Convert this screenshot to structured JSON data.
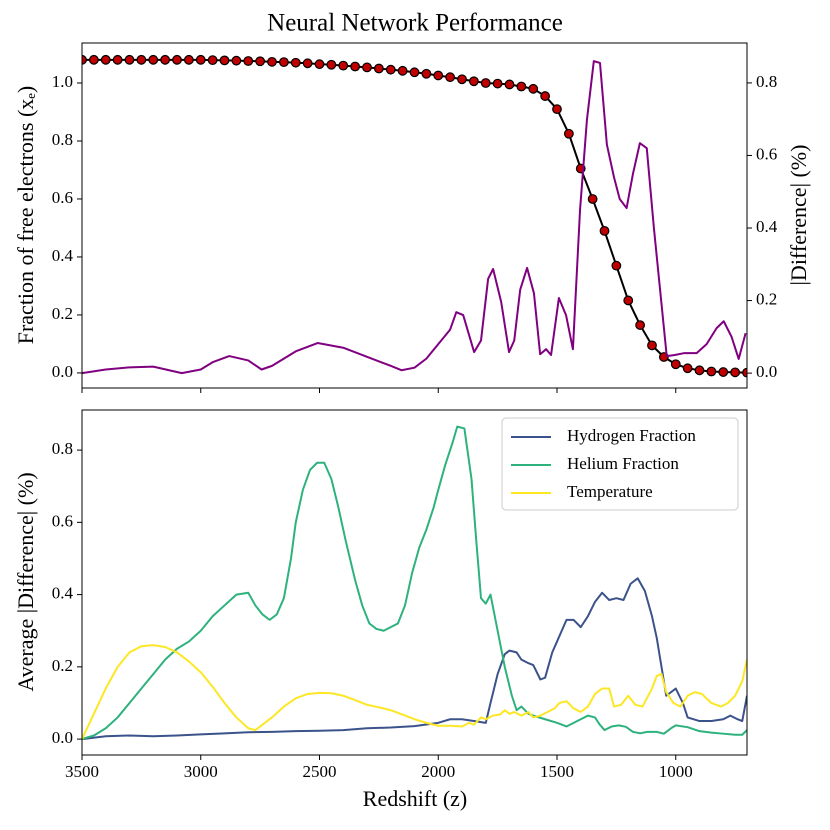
{
  "chart_data": [
    {
      "type": "line",
      "title": "Neural Network Performance",
      "ylabel": "Fraction of free electrons (xₑ)",
      "y2label": "|Difference| (%)",
      "xlim": [
        3500,
        700
      ],
      "xticks": [
        3500,
        3000,
        2500,
        2000,
        1500,
        1000
      ],
      "ylim": [
        -0.052,
        1.138
      ],
      "yticks": [
        {
          "value": 0,
          "label": "0.0"
        },
        {
          "value": 0.2,
          "label": "0.2"
        },
        {
          "value": 0.4,
          "label": "0.4"
        },
        {
          "value": 0.6,
          "label": "0.6"
        },
        {
          "value": 0.8,
          "label": "0.8"
        },
        {
          "value": 1.0,
          "label": "1.0"
        }
      ],
      "y2lim": [
        -0.041,
        0.91
      ],
      "y2ticks": [
        {
          "value": 0,
          "label": "0.0"
        },
        {
          "value": 0.2,
          "label": "0.2"
        },
        {
          "value": 0.4,
          "label": "0.4"
        },
        {
          "value": 0.6,
          "label": "0.6"
        },
        {
          "value": 0.8,
          "label": "0.8"
        }
      ],
      "series": [
        {
          "color": "#000000",
          "marker_color": "#c00000",
          "x": [
            3500,
            3450,
            3400,
            3350,
            3300,
            3250,
            3200,
            3150,
            3100,
            3050,
            3000,
            2950,
            2900,
            2850,
            2800,
            2750,
            2700,
            2650,
            2600,
            2550,
            2500,
            2450,
            2400,
            2350,
            2300,
            2250,
            2200,
            2150,
            2100,
            2050,
            2000,
            1950,
            1900,
            1850,
            1800,
            1750,
            1700,
            1650,
            1600,
            1550,
            1500,
            1450,
            1400,
            1350,
            1300,
            1250,
            1200,
            1150,
            1100,
            1050,
            1000,
            950,
            900,
            850,
            800,
            750,
            700
          ],
          "values": [
            1.08,
            1.08,
            1.08,
            1.08,
            1.08,
            1.08,
            1.08,
            1.08,
            1.08,
            1.08,
            1.08,
            1.079,
            1.078,
            1.077,
            1.076,
            1.075,
            1.073,
            1.072,
            1.07,
            1.068,
            1.065,
            1.063,
            1.06,
            1.057,
            1.054,
            1.05,
            1.046,
            1.042,
            1.037,
            1.032,
            1.026,
            1.02,
            1.013,
            1.006,
            1.0,
            0.998,
            0.995,
            0.988,
            0.98,
            0.955,
            0.91,
            0.825,
            0.705,
            0.6,
            0.49,
            0.37,
            0.25,
            0.165,
            0.095,
            0.055,
            0.03,
            0.016,
            0.009,
            0.005,
            0.003,
            0.002,
            0.001
          ]
        },
        {
          "color": "#800080",
          "axis": "y2",
          "x": [
            3500,
            3400,
            3300,
            3200,
            3080,
            3000,
            2950,
            2880,
            2800,
            2744,
            2700,
            2600,
            2508,
            2400,
            2300,
            2200,
            2155,
            2100,
            2050,
            2000,
            1950,
            1924,
            1895,
            1849,
            1820,
            1790,
            1769,
            1735,
            1702,
            1680,
            1655,
            1626,
            1597,
            1571,
            1546,
            1525,
            1492,
            1462,
            1433,
            1403,
            1374,
            1345,
            1319,
            1290,
            1260,
            1236,
            1207,
            1180,
            1151,
            1122,
            1092,
            1038,
            1004,
            966,
            912,
            870,
            828,
            798,
            765,
            735,
            706
          ],
          "values": [
            0,
            0.01,
            0.016,
            0.018,
            0,
            0.01,
            0.03,
            0.047,
            0.035,
            0.01,
            0.02,
            0.06,
            0.083,
            0.07,
            0.045,
            0.02,
            0.008,
            0.015,
            0.04,
            0.08,
            0.12,
            0.168,
            0.16,
            0.058,
            0.09,
            0.26,
            0.287,
            0.196,
            0.058,
            0.09,
            0.23,
            0.29,
            0.22,
            0.052,
            0.066,
            0.05,
            0.207,
            0.16,
            0.066,
            0.45,
            0.698,
            0.86,
            0.855,
            0.63,
            0.54,
            0.48,
            0.455,
            0.55,
            0.634,
            0.62,
            0.4,
            0.047,
            0.05,
            0.055,
            0.055,
            0.08,
            0.124,
            0.143,
            0.1,
            0.039,
            0.11
          ]
        }
      ]
    },
    {
      "type": "line",
      "xlabel": "Redshift (z)",
      "ylabel": "Average |Difference| (%)",
      "legend": "upper right",
      "xlim": [
        3500,
        700
      ],
      "xticks": [
        3500,
        3000,
        2500,
        2000,
        1500,
        1000
      ],
      "ylim": [
        -0.044,
        0.911
      ],
      "yticks": [
        {
          "value": 0,
          "label": "0.0"
        },
        {
          "value": 0.2,
          "label": "0.2"
        },
        {
          "value": 0.4,
          "label": "0.4"
        },
        {
          "value": 0.6,
          "label": "0.6"
        },
        {
          "value": 0.8,
          "label": "0.8"
        }
      ],
      "series": [
        {
          "name": "Hydrogen Fraction",
          "color": "#3b528b",
          "x": [
            3500,
            3400,
            3300,
            3200,
            3100,
            3000,
            2900,
            2800,
            2700,
            2600,
            2500,
            2400,
            2300,
            2200,
            2100,
            2000,
            1950,
            1900,
            1850,
            1800,
            1780,
            1750,
            1720,
            1700,
            1670,
            1650,
            1620,
            1600,
            1570,
            1550,
            1520,
            1500,
            1460,
            1430,
            1400,
            1370,
            1340,
            1310,
            1280,
            1250,
            1220,
            1190,
            1160,
            1130,
            1100,
            1080,
            1060,
            1040,
            1000,
            970,
            950,
            900,
            850,
            800,
            770,
            740,
            720,
            700
          ],
          "values": [
            0,
            0.008,
            0.01,
            0.008,
            0.01,
            0.013,
            0.016,
            0.019,
            0.02,
            0.022,
            0.023,
            0.025,
            0.03,
            0.032,
            0.036,
            0.045,
            0.055,
            0.055,
            0.05,
            0.045,
            0.1,
            0.18,
            0.235,
            0.245,
            0.24,
            0.22,
            0.21,
            0.205,
            0.165,
            0.17,
            0.24,
            0.27,
            0.33,
            0.33,
            0.31,
            0.34,
            0.38,
            0.405,
            0.385,
            0.39,
            0.385,
            0.43,
            0.445,
            0.41,
            0.34,
            0.28,
            0.2,
            0.12,
            0.14,
            0.1,
            0.06,
            0.05,
            0.05,
            0.055,
            0.065,
            0.055,
            0.05,
            0.12
          ]
        },
        {
          "name": "Helium Fraction",
          "color": "#2db27d",
          "x": [
            3500,
            3450,
            3400,
            3350,
            3300,
            3250,
            3200,
            3150,
            3100,
            3050,
            3000,
            2950,
            2900,
            2850,
            2800,
            2770,
            2740,
            2710,
            2680,
            2650,
            2620,
            2600,
            2570,
            2540,
            2510,
            2480,
            2450,
            2420,
            2390,
            2350,
            2320,
            2290,
            2260,
            2230,
            2200,
            2170,
            2140,
            2110,
            2080,
            2050,
            2020,
            2000,
            1970,
            1940,
            1920,
            1890,
            1860,
            1840,
            1820,
            1800,
            1780,
            1750,
            1720,
            1690,
            1670,
            1650,
            1620,
            1600,
            1550,
            1500,
            1460,
            1430,
            1400,
            1370,
            1340,
            1320,
            1300,
            1270,
            1240,
            1210,
            1180,
            1150,
            1120,
            1080,
            1050,
            1020,
            1000,
            950,
            900,
            850,
            800,
            750,
            720,
            700
          ],
          "values": [
            0,
            0.01,
            0.03,
            0.06,
            0.1,
            0.14,
            0.18,
            0.22,
            0.25,
            0.27,
            0.3,
            0.34,
            0.37,
            0.4,
            0.405,
            0.37,
            0.345,
            0.33,
            0.345,
            0.39,
            0.5,
            0.6,
            0.69,
            0.745,
            0.765,
            0.765,
            0.72,
            0.64,
            0.55,
            0.44,
            0.37,
            0.32,
            0.305,
            0.3,
            0.31,
            0.32,
            0.37,
            0.46,
            0.53,
            0.58,
            0.64,
            0.69,
            0.76,
            0.82,
            0.865,
            0.86,
            0.72,
            0.55,
            0.39,
            0.375,
            0.4,
            0.3,
            0.2,
            0.12,
            0.08,
            0.09,
            0.07,
            0.065,
            0.055,
            0.045,
            0.035,
            0.045,
            0.055,
            0.065,
            0.06,
            0.04,
            0.025,
            0.035,
            0.038,
            0.034,
            0.02,
            0.016,
            0.02,
            0.02,
            0.015,
            0.03,
            0.038,
            0.033,
            0.022,
            0.018,
            0.015,
            0.012,
            0.012,
            0.025
          ]
        },
        {
          "name": "Temperature",
          "color": "#fde725",
          "x": [
            3500,
            3450,
            3400,
            3350,
            3300,
            3250,
            3200,
            3150,
            3100,
            3050,
            3000,
            2950,
            2900,
            2850,
            2800,
            2770,
            2750,
            2700,
            2650,
            2600,
            2550,
            2500,
            2450,
            2400,
            2350,
            2300,
            2250,
            2200,
            2150,
            2100,
            2050,
            2000,
            1950,
            1900,
            1870,
            1850,
            1820,
            1800,
            1770,
            1740,
            1720,
            1700,
            1680,
            1650,
            1620,
            1600,
            1570,
            1540,
            1510,
            1490,
            1460,
            1430,
            1400,
            1370,
            1340,
            1310,
            1280,
            1260,
            1230,
            1200,
            1170,
            1140,
            1100,
            1080,
            1060,
            1040,
            1010,
            980,
            950,
            920,
            890,
            850,
            810,
            780,
            750,
            720,
            700
          ],
          "values": [
            0,
            0.07,
            0.14,
            0.2,
            0.24,
            0.257,
            0.26,
            0.255,
            0.24,
            0.215,
            0.185,
            0.145,
            0.1,
            0.06,
            0.03,
            0.025,
            0.035,
            0.06,
            0.09,
            0.113,
            0.125,
            0.128,
            0.127,
            0.12,
            0.108,
            0.095,
            0.088,
            0.08,
            0.068,
            0.055,
            0.045,
            0.037,
            0.037,
            0.035,
            0.045,
            0.04,
            0.06,
            0.055,
            0.065,
            0.068,
            0.08,
            0.07,
            0.075,
            0.065,
            0.075,
            0.06,
            0.065,
            0.075,
            0.085,
            0.1,
            0.105,
            0.085,
            0.075,
            0.09,
            0.125,
            0.14,
            0.14,
            0.09,
            0.095,
            0.12,
            0.095,
            0.09,
            0.14,
            0.175,
            0.18,
            0.13,
            0.1,
            0.09,
            0.12,
            0.13,
            0.125,
            0.1,
            0.09,
            0.1,
            0.12,
            0.16,
            0.22
          ]
        }
      ]
    }
  ]
}
